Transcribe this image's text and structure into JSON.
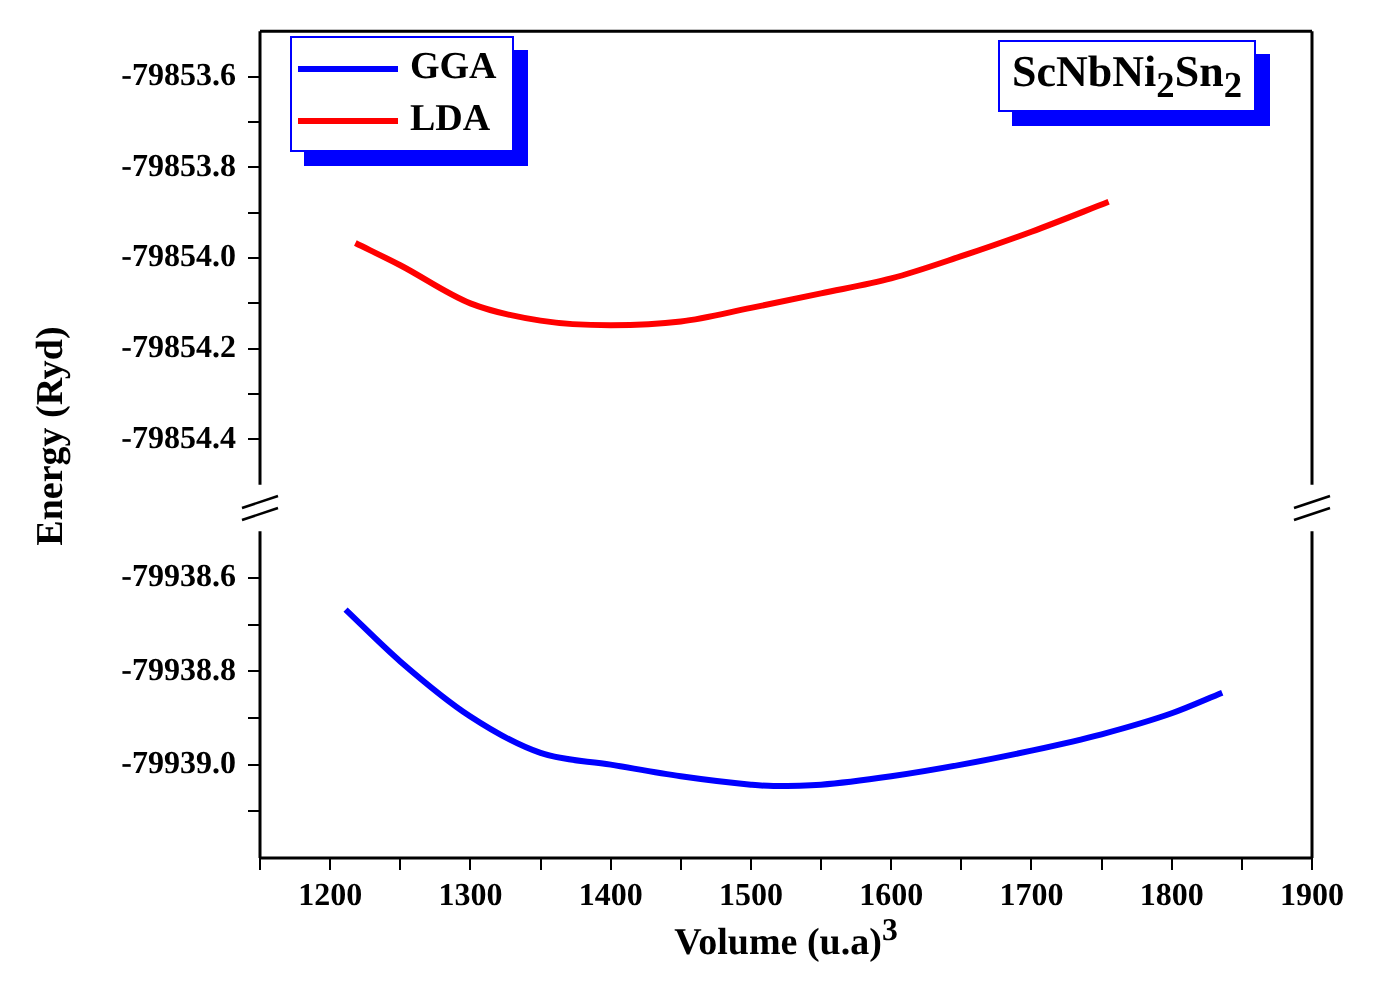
{
  "chart_data": [
    {
      "type": "line",
      "title": "ScNbNi$_{2}$Sn$_{2}$",
      "ylabel": "Energy (Ryd)",
      "xlim": [
        1150,
        1900
      ],
      "ylim": [
        -79854.5,
        -79853.5
      ],
      "yticks": [
        -79853.6,
        {
          "value": -79853.7,
          "label": null
        },
        -79853.8,
        {
          "value": -79853.9,
          "label": null
        },
        {
          "value": -79854.0,
          "label": "-79854.0"
        },
        {
          "value": -79854.1,
          "label": null
        },
        -79854.2,
        {
          "value": -79854.3,
          "label": null
        },
        -79854.4
      ],
      "tick_labels": "y",
      "legend": "top left",
      "marker": "none",
      "series": [
        {
          "name": "LDA",
          "color": "#ff0000",
          "x": [
            1218,
            1250,
            1300,
            1350,
            1400,
            1450,
            1500,
            1550,
            1600,
            1650,
            1700,
            1755
          ],
          "values": [
            -79853.967,
            -79854.016,
            -79854.1,
            -79854.138,
            -79854.148,
            -79854.14,
            -79854.11,
            -79854.078,
            -79854.045,
            -79853.996,
            -79853.942,
            -79853.876
          ]
        }
      ]
    },
    {
      "type": "line",
      "xlabel": "Volume (u.a)$^{3}$",
      "xlim": [
        1150,
        1900
      ],
      "xticks": [
        {
          "value": 1150,
          "label": null
        },
        1200,
        {
          "value": 1250,
          "label": null
        },
        1300,
        {
          "value": 1350,
          "label": null
        },
        1400,
        {
          "value": 1450,
          "label": null
        },
        1500,
        {
          "value": 1550,
          "label": null
        },
        1600,
        {
          "value": 1650,
          "label": null
        },
        1700,
        {
          "value": 1750,
          "label": null
        },
        1800,
        {
          "value": 1850,
          "label": null
        },
        1900
      ],
      "ylim": [
        -79939.2,
        -79938.5
      ],
      "yticks": [
        -79938.6,
        {
          "value": -79938.7,
          "label": null
        },
        -79938.8,
        {
          "value": -79938.9,
          "label": null
        },
        {
          "value": -79939.0,
          "label": "-79939.0"
        },
        {
          "value": -79939.1,
          "label": null
        }
      ],
      "marker": "none",
      "series": [
        {
          "name": "GGA",
          "color": "#0000ff",
          "x": [
            1211,
            1250,
            1300,
            1350,
            1400,
            1450,
            1500,
            1516,
            1550,
            1600,
            1650,
            1700,
            1750,
            1800,
            1836
          ],
          "values": [
            -79938.668,
            -79938.779,
            -79938.897,
            -79938.975,
            -79939.0,
            -79939.025,
            -79939.043,
            -79939.046,
            -79939.043,
            -79939.025,
            -79939.0,
            -79938.97,
            -79938.935,
            -79938.89,
            -79938.846
          ]
        }
      ]
    }
  ]
}
